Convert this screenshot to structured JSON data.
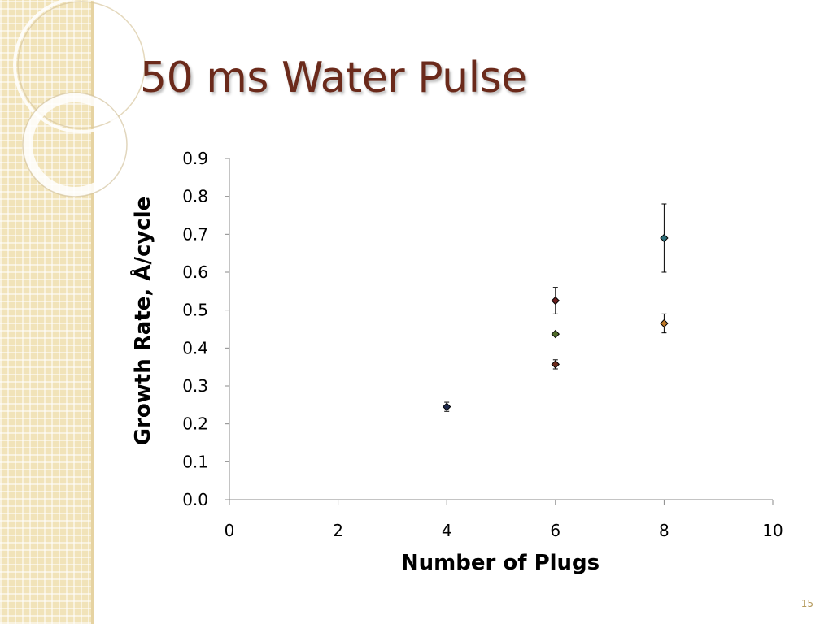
{
  "slide": {
    "title": "50 ms Water Pulse",
    "page_number": "15"
  },
  "chart_data": {
    "type": "scatter",
    "title": "",
    "xlabel": "Number of Plugs",
    "ylabel": "Growth Rate, Å/cycle",
    "xlim": [
      0,
      10
    ],
    "ylim": [
      0.0,
      0.9
    ],
    "x_ticks": [
      "0",
      "2",
      "4",
      "6",
      "8",
      "10"
    ],
    "y_ticks": [
      "0.0",
      "0.1",
      "0.2",
      "0.3",
      "0.4",
      "0.5",
      "0.6",
      "0.7",
      "0.8",
      "0.9"
    ],
    "grid": false,
    "legend": "none",
    "points": [
      {
        "x": 4,
        "y": 0.245,
        "err": 0.012,
        "color": "#1f2a4d"
      },
      {
        "x": 6,
        "y": 0.525,
        "err": 0.035,
        "color": "#6b1f1f"
      },
      {
        "x": 6,
        "y": 0.437,
        "err": 0.005,
        "color": "#4f6b2a"
      },
      {
        "x": 6,
        "y": 0.357,
        "err": 0.012,
        "color": "#6b2a1b"
      },
      {
        "x": 8,
        "y": 0.69,
        "err": 0.09,
        "color": "#2d6f7a"
      },
      {
        "x": 8,
        "y": 0.465,
        "err": 0.025,
        "color": "#c07a28"
      }
    ]
  }
}
